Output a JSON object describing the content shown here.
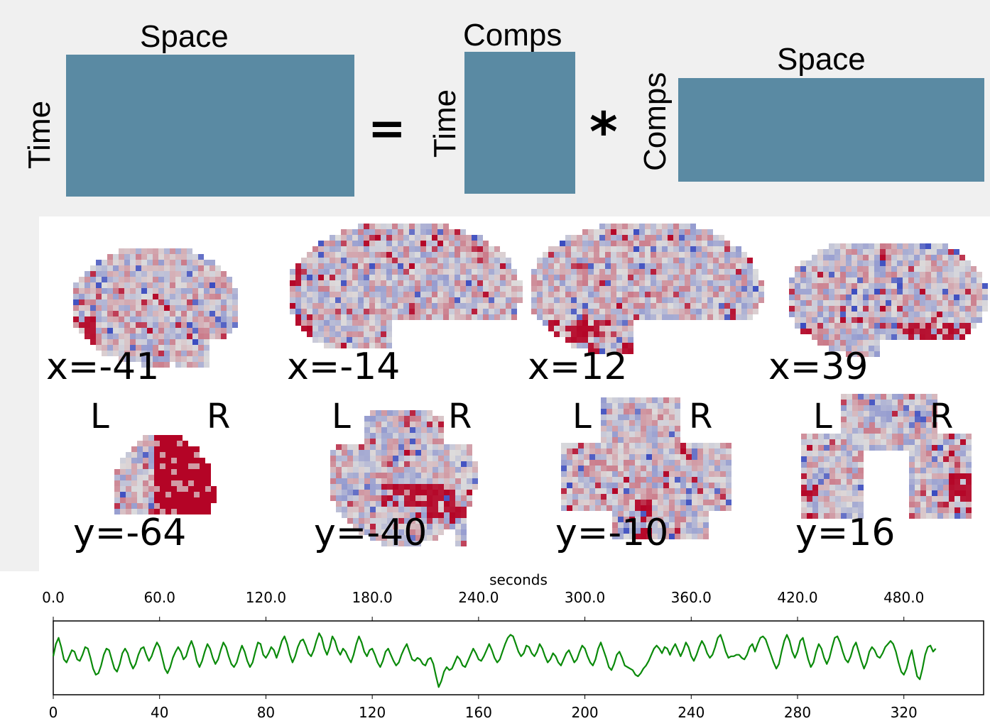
{
  "equation": {
    "left_matrix": {
      "top_label": "Space",
      "side_label": "Time"
    },
    "equals_symbol": "=",
    "middle_matrix": {
      "top_label": "Comps",
      "side_label": "Time"
    },
    "times_symbol": "*",
    "right_matrix": {
      "top_label": "Space",
      "side_label": "Comps"
    },
    "matrix_color": "#5a8aa3"
  },
  "brain_maps": {
    "sagittal_labels": [
      "x=-41",
      "x=-14",
      "x=12",
      "x=39"
    ],
    "coronal_labels": [
      "y=-64",
      "y=-40",
      "y=-10",
      "y=16"
    ],
    "left_marker": "L",
    "right_marker": "R",
    "colors": {
      "positive": "#b40426",
      "negative": "#3b4cc0",
      "neutral": "#dddcdc"
    }
  },
  "chart_data": {
    "type": "line",
    "top_axis": {
      "label": "seconds",
      "ticks": [
        "0.0",
        "60.0",
        "120.0",
        "180.0",
        "240.0",
        "300.0",
        "360.0",
        "420.0",
        "480.0"
      ],
      "range": [
        0,
        525
      ]
    },
    "bottom_axis": {
      "ticks": [
        "0",
        "40",
        "80",
        "120",
        "160",
        "200",
        "240",
        "280",
        "320"
      ],
      "range": [
        0,
        350
      ]
    },
    "ylim": [
      -1.2,
      1.2
    ],
    "line_color": "#0a8a0a",
    "series": [
      {
        "x_step": 1,
        "values": [
          0.05,
          0.45,
          0.65,
          0.35,
          -0.05,
          -0.15,
          0.05,
          0.25,
          0.2,
          -0.05,
          -0.1,
          0.1,
          0.35,
          0.3,
          0.0,
          -0.35,
          -0.55,
          -0.5,
          -0.25,
          0.1,
          0.3,
          0.25,
          -0.05,
          -0.35,
          -0.45,
          -0.2,
          0.15,
          0.3,
          0.15,
          -0.15,
          -0.35,
          -0.2,
          0.1,
          0.3,
          0.35,
          0.1,
          -0.1,
          0.05,
          0.3,
          0.5,
          0.35,
          0.0,
          -0.35,
          -0.5,
          -0.3,
          0.0,
          0.2,
          0.35,
          0.2,
          -0.05,
          0.05,
          0.35,
          0.55,
          0.3,
          -0.1,
          -0.3,
          -0.1,
          0.2,
          0.45,
          0.3,
          0.0,
          -0.2,
          -0.05,
          0.25,
          0.5,
          0.35,
          0.05,
          -0.2,
          -0.3,
          -0.15,
          0.15,
          0.4,
          0.2,
          -0.1,
          -0.3,
          -0.15,
          0.2,
          0.5,
          0.45,
          0.1,
          0.0,
          0.15,
          0.35,
          0.25,
          0.0,
          0.25,
          0.55,
          0.7,
          0.45,
          0.1,
          -0.15,
          0.05,
          0.35,
          0.55,
          0.6,
          0.4,
          0.15,
          0.05,
          0.25,
          0.55,
          0.8,
          0.65,
          0.3,
          0.1,
          0.35,
          0.7,
          0.55,
          0.25,
          0.1,
          0.3,
          0.2,
          0.0,
          -0.15,
          0.1,
          0.45,
          0.7,
          0.5,
          0.2,
          0.05,
          0.25,
          0.3,
          0.1,
          -0.15,
          -0.3,
          -0.1,
          0.2,
          0.3,
          0.1,
          -0.1,
          -0.25,
          -0.15,
          0.1,
          0.3,
          0.45,
          0.2,
          -0.05,
          -0.1,
          0.0,
          -0.05,
          -0.2,
          -0.25,
          -0.05,
          0.0,
          -0.2,
          -0.6,
          -0.95,
          -0.75,
          -0.45,
          -0.3,
          -0.4,
          -0.35,
          -0.15,
          0.05,
          -0.05,
          -0.25,
          -0.3,
          -0.1,
          0.1,
          0.3,
          0.15,
          -0.05,
          -0.1,
          0.05,
          0.25,
          0.45,
          0.25,
          0.0,
          -0.15,
          -0.05,
          0.2,
          0.45,
          0.65,
          0.75,
          0.7,
          0.45,
          0.2,
          0.05,
          0.15,
          0.4,
          0.35,
          0.15,
          0.05,
          0.2,
          0.45,
          0.3,
          0.05,
          -0.15,
          -0.05,
          0.15,
          0.05,
          -0.15,
          -0.25,
          -0.05,
          0.15,
          0.25,
          0.05,
          -0.15,
          -0.05,
          0.2,
          0.4,
          0.3,
          0.05,
          -0.15,
          -0.25,
          -0.05,
          0.3,
          0.5,
          0.25,
          0.0,
          -0.3,
          -0.4,
          -0.2,
          0.1,
          0.2,
          0.0,
          -0.25,
          -0.3,
          -0.35,
          -0.4,
          -0.55,
          -0.6,
          -0.5,
          -0.35,
          -0.25,
          -0.1,
          0.1,
          0.3,
          0.4,
          0.3,
          0.15,
          0.35,
          0.3,
          0.1,
          0.3,
          0.45,
          0.25,
          0.05,
          0.25,
          0.5,
          0.35,
          0.05,
          -0.1,
          0.1,
          0.35,
          0.55,
          0.4,
          0.15,
          0.0,
          0.1,
          0.35,
          0.65,
          0.75,
          0.5,
          0.2,
          0.0,
          0.05,
          0.05,
          0.1,
          0.1,
          0.0,
          -0.05,
          0.1,
          0.35,
          0.45,
          0.2,
          0.45,
          0.65,
          0.7,
          0.6,
          0.35,
          0.1,
          -0.15,
          -0.35,
          -0.2,
          0.2,
          0.55,
          0.75,
          0.55,
          0.2,
          0.0,
          0.2,
          0.55,
          0.65,
          0.3,
          -0.05,
          -0.3,
          -0.15,
          0.2,
          0.45,
          0.3,
          0.0,
          -0.2,
          0.0,
          0.35,
          0.65,
          0.7,
          0.5,
          0.2,
          -0.05,
          -0.15,
          0.05,
          0.35,
          0.5,
          0.2,
          -0.1,
          -0.35,
          -0.15,
          0.2,
          0.35,
          0.25,
          0.05,
          0.0,
          0.15,
          0.35,
          0.45,
          0.55,
          0.45,
          0.2,
          -0.15,
          -0.45,
          -0.55,
          -0.35,
          0.0,
          0.25,
          -0.2,
          -0.6,
          -0.7,
          -0.35,
          0.1,
          0.35,
          0.4,
          0.2,
          0.3
        ]
      }
    ]
  }
}
